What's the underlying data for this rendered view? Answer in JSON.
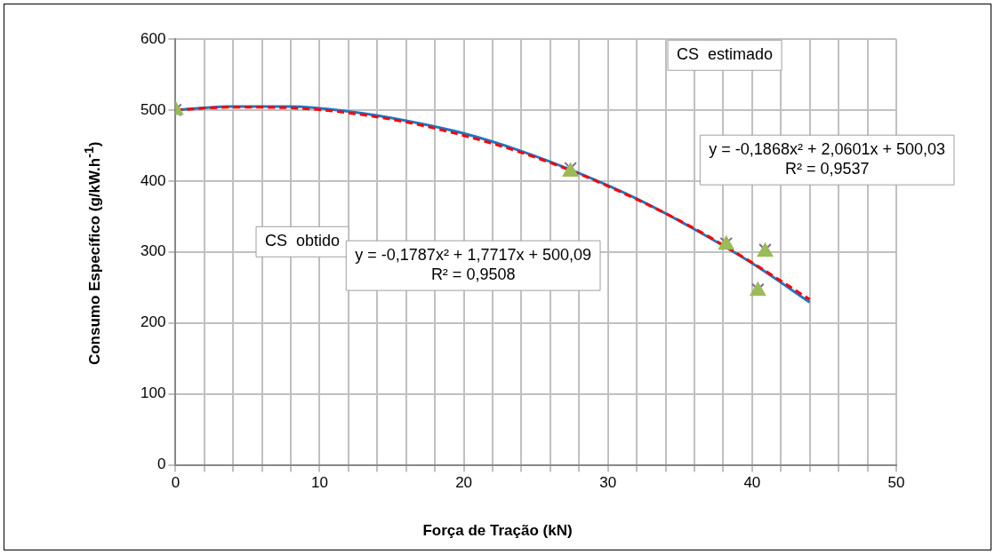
{
  "chart_data": {
    "type": "scatter",
    "xlabel": "Força de Tração (kN)",
    "ylabel": "Consumo Específico (g/kW.h$^{-1}$)",
    "xlim": [
      0,
      50
    ],
    "ylim": [
      0,
      600
    ],
    "xticks": [
      0,
      {
        "value": 2,
        "label": null
      },
      {
        "value": 4,
        "label": null
      },
      {
        "value": 6,
        "label": null
      },
      {
        "value": 8,
        "label": null
      },
      10,
      {
        "value": 12,
        "label": null
      },
      {
        "value": 14,
        "label": null
      },
      {
        "value": 16,
        "label": null
      },
      {
        "value": 18,
        "label": null
      },
      20,
      {
        "value": 22,
        "label": null
      },
      {
        "value": 24,
        "label": null
      },
      {
        "value": 26,
        "label": null
      },
      {
        "value": 28,
        "label": null
      },
      30,
      {
        "value": 32,
        "label": null
      },
      {
        "value": 34,
        "label": null
      },
      {
        "value": 36,
        "label": null
      },
      {
        "value": 38,
        "label": null
      },
      40,
      {
        "value": 42,
        "label": null
      },
      {
        "value": 44,
        "label": null
      },
      {
        "value": 46,
        "label": null
      },
      {
        "value": 48,
        "label": null
      },
      50
    ],
    "yticks": [
      0,
      100,
      200,
      300,
      400,
      500,
      600
    ],
    "grid": true,
    "legend": false,
    "series": [
      {
        "type": "line",
        "color": "#ff0000",
        "line_style": "dashed",
        "marker": "none",
        "x": [
          0,
          4,
          8,
          12,
          16,
          20,
          24,
          28,
          32,
          36,
          40,
          44
        ],
        "values": [
          500,
          504,
          503,
          496,
          483,
          464,
          440,
          410,
          374,
          333,
          285,
          233
        ]
      },
      {
        "type": "line",
        "color": "#1f77c4",
        "line_style": "solid",
        "marker": "none",
        "x": [
          0,
          4,
          8,
          12,
          16,
          20,
          24,
          28,
          32,
          36,
          40,
          44
        ],
        "values": [
          500,
          505,
          505,
          498,
          485,
          467,
          442,
          411,
          375,
          332,
          284,
          229
        ]
      },
      {
        "color": "#9bbb59",
        "marker": "triangle",
        "x": [
          0,
          27.4,
          38.2,
          40.9,
          40.4
        ],
        "values": [
          500,
          413,
          310,
          300,
          245
        ]
      },
      {
        "color": "#8064a2",
        "marker": "cross",
        "x": [
          0,
          27.4,
          38.2,
          40.9,
          40.4
        ],
        "values": [
          500,
          418,
          312,
          303,
          247
        ]
      }
    ],
    "annotations": [
      "CS  obtido",
      "y = -0,1787x² + 1,7717x + 500,09\nR² = 0,9508",
      "CS  estimado",
      "y = -0,1868x² + 2,0601x + 500,03\nR² = 0,9537"
    ]
  }
}
